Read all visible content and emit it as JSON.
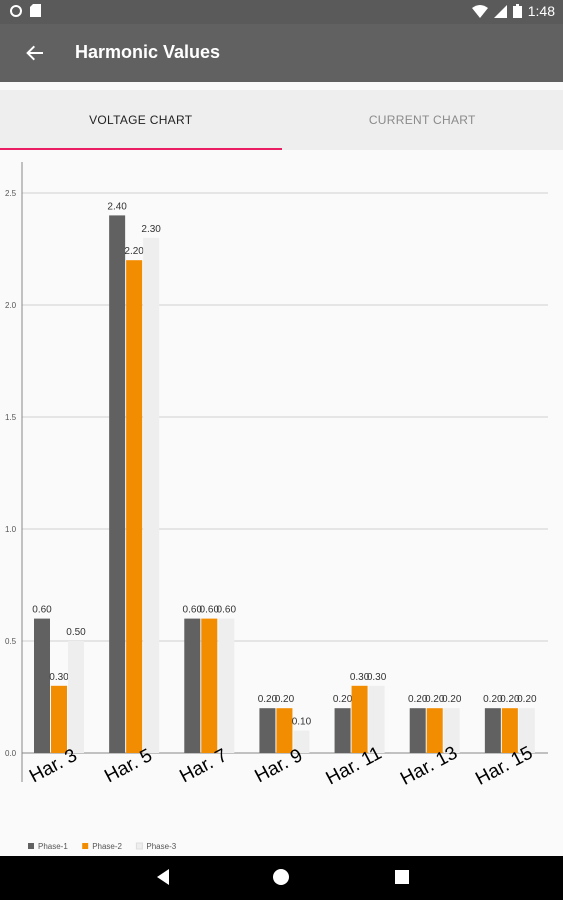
{
  "status_bar": {
    "time": "1:48",
    "icons": [
      "circle-notification-icon",
      "sd-card-icon",
      "wifi-icon",
      "signal-icon",
      "battery-icon"
    ]
  },
  "app_bar": {
    "title": "Harmonic Values",
    "back_icon": "arrow-back-icon"
  },
  "tabs": [
    {
      "label": "VOLTAGE CHART",
      "active": true
    },
    {
      "label": "CURRENT CHART",
      "active": false
    }
  ],
  "colors": {
    "accent": "#e91e63",
    "phase1": "#616161",
    "phase2": "#f28c00",
    "phase3": "#eeeeee"
  },
  "chart_data": {
    "type": "bar",
    "categories": [
      "Har. 3",
      "Har. 5",
      "Har. 7",
      "Har. 9",
      "Har. 11",
      "Har. 13",
      "Har. 15"
    ],
    "series": [
      {
        "name": "Phase-1",
        "values": [
          0.6,
          2.4,
          0.6,
          0.2,
          0.2,
          0.2,
          0.2
        ],
        "labels": [
          "0.60",
          "2.40",
          "0.60",
          "0.20",
          "0.20",
          "0.20",
          "0.20"
        ]
      },
      {
        "name": "Phase-2",
        "values": [
          0.3,
          2.2,
          0.6,
          0.2,
          0.3,
          0.2,
          0.2
        ],
        "labels": [
          "0.30",
          "2.20",
          "0.60",
          "0.20",
          "0.30",
          "0.20",
          "0.20"
        ]
      },
      {
        "name": "Phase-3",
        "values": [
          0.5,
          2.3,
          0.6,
          0.1,
          0.3,
          0.2,
          0.2
        ],
        "labels": [
          "0.50",
          "2.30",
          "0.60",
          "0.10",
          "0.30",
          "0.20",
          "0.20"
        ]
      }
    ],
    "y_ticks": [
      "0.0",
      "0.5",
      "1.0",
      "1.5",
      "2.0",
      "2.5"
    ],
    "ylim": [
      0,
      2.5
    ],
    "grid": true,
    "legend_position": "bottom-left"
  },
  "nav_bar": {
    "icons": [
      "back-triangle-icon",
      "home-circle-icon",
      "recents-square-icon"
    ]
  }
}
